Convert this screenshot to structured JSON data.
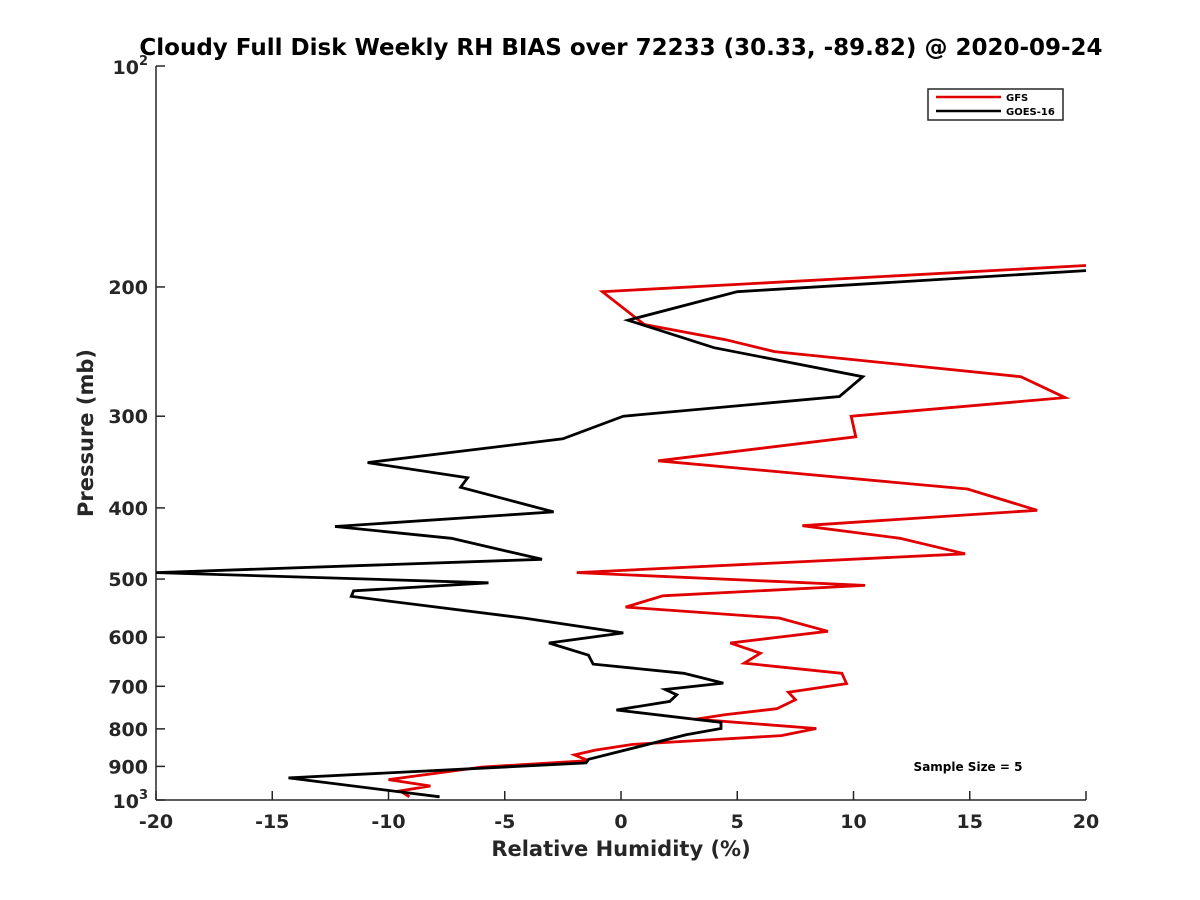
{
  "chart_data": {
    "type": "line",
    "title": "Cloudy Full Disk Weekly RH BIAS over 72233 (30.33, -89.82) @ 2020-09-24",
    "xlabel": "Relative Humidity (%)",
    "ylabel": "Pressure (mb)",
    "xlim": [
      -20,
      20
    ],
    "ylim": [
      100,
      1000
    ],
    "yscale": "log",
    "yreversed": true,
    "x_ticks": [
      -20,
      -15,
      -10,
      -5,
      0,
      5,
      10,
      15,
      20
    ],
    "x_tick_labels": [
      "-20",
      "-15",
      "-10",
      "-5",
      "0",
      "5",
      "10",
      "15",
      "20"
    ],
    "y_ticks": [
      200,
      300,
      400,
      500,
      600,
      700,
      800,
      900
    ],
    "y_tick_labels": [
      "200",
      "300",
      "400",
      "500",
      "600",
      "700",
      "800",
      "900"
    ],
    "y_decade_labels": [
      {
        "value": 100,
        "base": "10",
        "exponent": "2"
      },
      {
        "value": 1000,
        "base": "10",
        "exponent": "3"
      }
    ],
    "legend_position": "top-right",
    "annotation": "Sample Size = 5",
    "series": [
      {
        "name": "GFS",
        "color": "#e00000",
        "points": [
          [
            20,
            187
          ],
          [
            -0.8,
            203
          ],
          [
            1.0,
            225
          ],
          [
            4.5,
            236
          ],
          [
            6.6,
            245
          ],
          [
            17.2,
            265
          ],
          [
            19.1,
            283
          ],
          [
            9.9,
            300
          ],
          [
            10.1,
            320
          ],
          [
            1.6,
            345
          ],
          [
            14.9,
            377
          ],
          [
            17.9,
            403
          ],
          [
            7.8,
            423
          ],
          [
            12.0,
            440
          ],
          [
            14.8,
            462
          ],
          [
            -1.9,
            490
          ],
          [
            10.5,
            510
          ],
          [
            1.8,
            527
          ],
          [
            0.2,
            546
          ],
          [
            6.8,
            565
          ],
          [
            8.9,
            589
          ],
          [
            4.7,
            611
          ],
          [
            6.0,
            631
          ],
          [
            5.3,
            651
          ],
          [
            9.5,
            672
          ],
          [
            9.7,
            694
          ],
          [
            7.2,
            713
          ],
          [
            7.5,
            730
          ],
          [
            6.7,
            751
          ],
          [
            4.5,
            765
          ],
          [
            3.2,
            776
          ],
          [
            8.4,
            799
          ],
          [
            6.9,
            817
          ],
          [
            0.5,
            840
          ],
          [
            -1.1,
            855
          ],
          [
            -2.0,
            868
          ],
          [
            -1.4,
            884
          ],
          [
            -6.0,
            902
          ],
          [
            -10.0,
            938
          ],
          [
            -8.2,
            957
          ],
          [
            -9.5,
            972
          ],
          [
            -9.1,
            990
          ]
        ]
      },
      {
        "name": "GOES-16",
        "color": "#000000",
        "points": [
          [
            20,
            190
          ],
          [
            5.0,
            203
          ],
          [
            0.3,
            222
          ],
          [
            4.0,
            242
          ],
          [
            10.4,
            265
          ],
          [
            9.4,
            282
          ],
          [
            0.1,
            300
          ],
          [
            -2.5,
            322
          ],
          [
            -10.9,
            347
          ],
          [
            -6.6,
            364
          ],
          [
            -6.9,
            375
          ],
          [
            -2.9,
            405
          ],
          [
            -12.3,
            424
          ],
          [
            -7.3,
            440
          ],
          [
            -3.4,
            470
          ],
          [
            -20,
            490
          ],
          [
            -5.7,
            506
          ],
          [
            -11.5,
            519
          ],
          [
            -11.6,
            528
          ],
          [
            -4.2,
            565
          ],
          [
            0.1,
            592
          ],
          [
            -3.1,
            611
          ],
          [
            -1.4,
            635
          ],
          [
            -1.2,
            653
          ],
          [
            2.7,
            672
          ],
          [
            4.4,
            693
          ],
          [
            1.9,
            707
          ],
          [
            2.4,
            719
          ],
          [
            2.1,
            734
          ],
          [
            -0.2,
            754
          ],
          [
            4.3,
            784
          ],
          [
            4.3,
            799
          ],
          [
            2.8,
            815
          ],
          [
            -1.4,
            880
          ],
          [
            -1.5,
            890
          ],
          [
            -14.3,
            933
          ],
          [
            -9.5,
            975
          ],
          [
            -7.8,
            990
          ]
        ]
      }
    ]
  }
}
